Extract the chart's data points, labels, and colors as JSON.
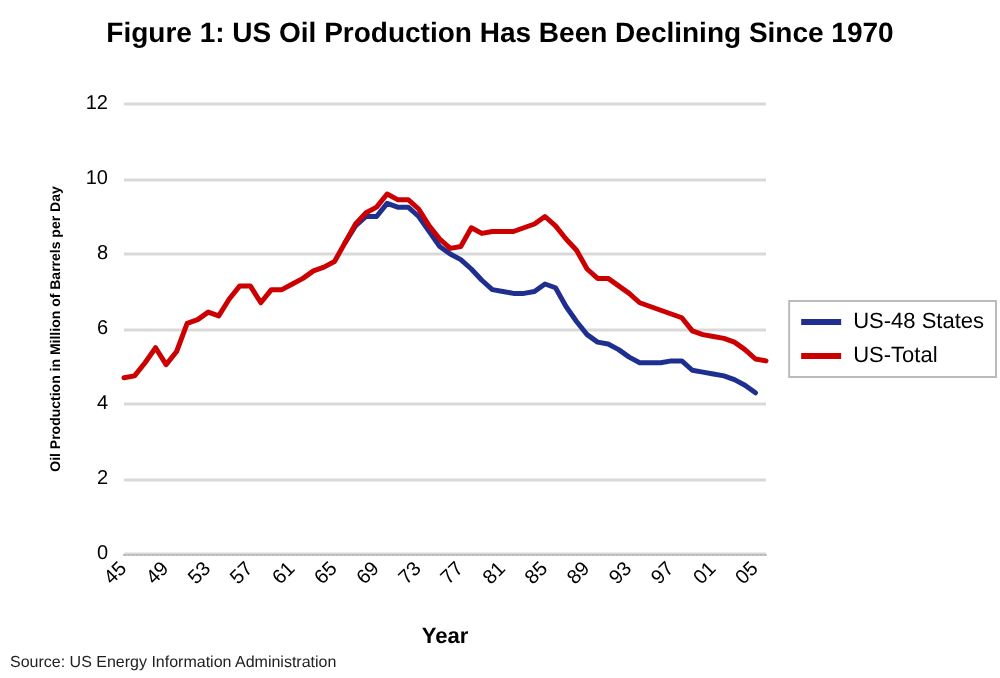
{
  "chart_data": {
    "type": "line",
    "title": "Figure 1: US Oil Production Has Been Declining Since 1970",
    "xlabel": "Year",
    "ylabel": "Oil Production in Million of Barrels per Day",
    "annotations": [
      "Source: US Energy Information Administration"
    ],
    "categories": [
      "45",
      null,
      null,
      null,
      "49",
      null,
      null,
      null,
      "53",
      null,
      null,
      null,
      "57",
      null,
      null,
      null,
      "61",
      null,
      null,
      null,
      "65",
      null,
      null,
      null,
      "69",
      null,
      null,
      null,
      "73",
      null,
      null,
      null,
      "77",
      null,
      null,
      null,
      "81",
      null,
      null,
      null,
      "85",
      null,
      null,
      null,
      "89",
      null,
      null,
      null,
      "93",
      null,
      null,
      null,
      "97",
      null,
      null,
      null,
      "01",
      null,
      null,
      null,
      "05",
      null
    ],
    "series": [
      {
        "name": "US-48 States",
        "color": "#1f2f8f",
        "values": [
          null,
          null,
          null,
          null,
          null,
          null,
          null,
          null,
          null,
          null,
          null,
          null,
          null,
          null,
          null,
          null,
          null,
          null,
          null,
          null,
          null,
          8.3,
          8.75,
          9.0,
          9.0,
          9.35,
          9.25,
          9.25,
          9.0,
          8.6,
          8.2,
          8.0,
          7.85,
          7.6,
          7.3,
          7.05,
          7.0,
          6.95,
          6.95,
          7.0,
          7.2,
          7.1,
          6.6,
          6.2,
          5.85,
          5.65,
          5.6,
          5.45,
          5.25,
          5.1,
          5.1,
          5.1,
          5.15,
          5.15,
          4.9,
          4.85,
          4.8,
          4.75,
          4.65,
          4.5,
          4.3,
          null
        ]
      },
      {
        "name": "US-Total",
        "color": "#cc0000",
        "values": [
          4.7,
          4.75,
          5.1,
          5.5,
          5.05,
          5.4,
          6.15,
          6.25,
          6.45,
          6.35,
          6.8,
          7.15,
          7.15,
          6.7,
          7.05,
          7.05,
          7.2,
          7.35,
          7.55,
          7.65,
          7.8,
          8.3,
          8.8,
          9.1,
          9.25,
          9.6,
          9.45,
          9.45,
          9.2,
          8.75,
          8.4,
          8.15,
          8.2,
          8.7,
          8.55,
          8.6,
          8.6,
          8.6,
          8.7,
          8.8,
          9.0,
          8.75,
          8.4,
          8.1,
          7.6,
          7.35,
          7.35,
          7.15,
          6.95,
          6.7,
          6.6,
          6.5,
          6.4,
          6.3,
          5.95,
          5.85,
          5.8,
          5.75,
          5.65,
          5.45,
          5.2,
          5.15
        ]
      }
    ],
    "ylim": [
      0,
      12
    ],
    "yticks": [
      0,
      2,
      4,
      6,
      8,
      10,
      12
    ],
    "grid": "y",
    "legend": "right",
    "marker": "none",
    "line_style": "solid"
  }
}
